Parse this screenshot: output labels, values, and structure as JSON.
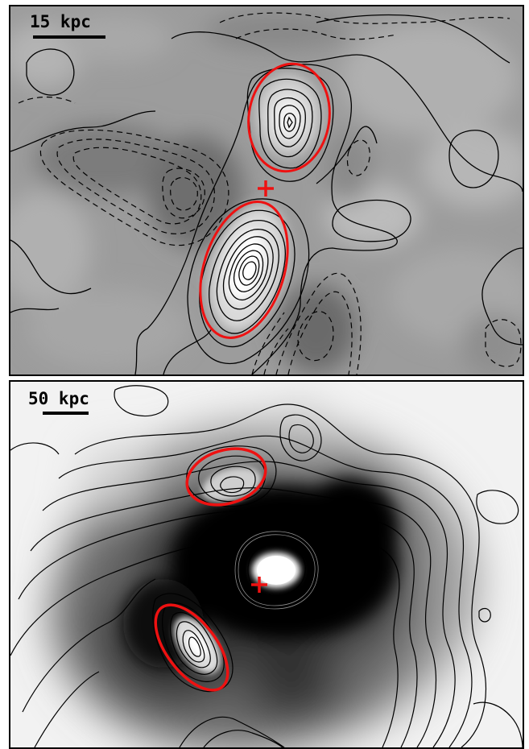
{
  "panels": [
    {
      "scale_label": "15 kpc",
      "colors": {
        "ellipse": "#ee1111",
        "cross": "#ee1111",
        "contour": "#000000"
      }
    },
    {
      "scale_label": "50 kpc",
      "colors": {
        "ellipse": "#ee1111",
        "cross": "#ee1111",
        "contour": "#000000"
      }
    }
  ]
}
